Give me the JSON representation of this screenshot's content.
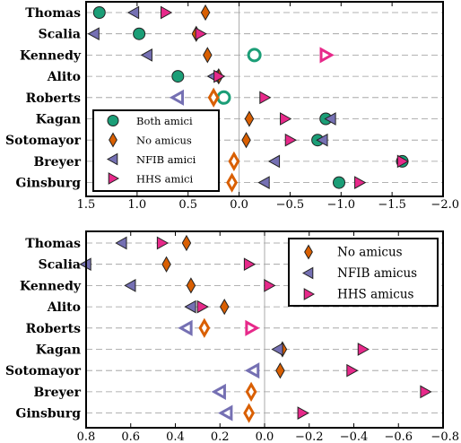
{
  "colors": {
    "both": "#1b9e77",
    "none": "#d95f02",
    "nfib": "#7570b3",
    "hhs": "#e7298a"
  },
  "chart_data": [
    {
      "type": "scatter",
      "title": "",
      "xlabel": "",
      "ylabel": "",
      "categories": [
        "Thomas",
        "Scalia",
        "Kennedy",
        "Alito",
        "Roberts",
        "Kagan",
        "Sotomayor",
        "Breyer",
        "Ginsburg"
      ],
      "xlim": [
        1.5,
        -2.0
      ],
      "xticks": [
        1.5,
        1.0,
        0.5,
        0.0,
        -0.5,
        -1.0,
        -1.5,
        -2.0
      ],
      "xtick_labels": [
        "1.5",
        "1.0",
        "0.5",
        "0.0",
        "−0.5",
        "−1.0",
        "−1.5",
        "−2.0"
      ],
      "grid": "horizontal dashed",
      "legend_position": "lower-left",
      "series": [
        {
          "name": "Both amici",
          "marker": "circle",
          "color_key": "both",
          "values": [
            1.37,
            0.98,
            -0.15,
            0.6,
            0.15,
            -0.85,
            -0.77,
            -1.6,
            -0.98
          ],
          "hollow": [
            false,
            false,
            true,
            false,
            true,
            false,
            false,
            false,
            false
          ]
        },
        {
          "name": "No amicus",
          "marker": "diamond",
          "color_key": "none",
          "values": [
            0.33,
            0.42,
            0.31,
            0.2,
            0.25,
            -0.1,
            -0.07,
            0.05,
            0.07
          ],
          "hollow": [
            false,
            false,
            false,
            false,
            true,
            false,
            false,
            true,
            true
          ]
        },
        {
          "name": "NFIB amici",
          "marker": "triangle-left",
          "color_key": "nfib",
          "values": [
            1.03,
            1.42,
            0.9,
            0.25,
            0.6,
            -0.9,
            -0.82,
            -0.35,
            -0.25
          ],
          "hollow": [
            false,
            false,
            false,
            false,
            true,
            false,
            false,
            false,
            false
          ]
        },
        {
          "name": "HHS amici",
          "marker": "triangle-right",
          "color_key": "hhs",
          "values": [
            0.72,
            0.38,
            -0.85,
            0.2,
            -0.25,
            -0.45,
            -0.5,
            -1.6,
            -1.18
          ],
          "hollow": [
            false,
            false,
            true,
            false,
            false,
            false,
            false,
            false,
            false
          ]
        }
      ]
    },
    {
      "type": "scatter",
      "title": "",
      "xlabel": "",
      "ylabel": "",
      "categories": [
        "Thomas",
        "Scalia",
        "Kennedy",
        "Alito",
        "Roberts",
        "Kagan",
        "Sotomayor",
        "Breyer",
        "Ginsburg"
      ],
      "xlim": [
        0.8,
        -0.8
      ],
      "xticks": [
        0.8,
        0.6,
        0.4,
        0.2,
        0.0,
        -0.2,
        -0.4,
        -0.6,
        -0.8
      ],
      "xtick_labels": [
        "0.8",
        "0.6",
        "0.4",
        "0.2",
        "0.0",
        "−0.2",
        "−0.4",
        "−0.6",
        "−0.8"
      ],
      "grid": "horizontal dashed",
      "legend_position": "top-right",
      "series": [
        {
          "name": "No amicus",
          "marker": "diamond",
          "color_key": "none",
          "values": [
            0.35,
            0.44,
            0.33,
            0.18,
            0.27,
            -0.08,
            -0.07,
            0.06,
            0.07
          ],
          "hollow": [
            false,
            false,
            false,
            false,
            true,
            false,
            false,
            true,
            true
          ]
        },
        {
          "name": "NFIB amicus",
          "marker": "triangle-left",
          "color_key": "nfib",
          "values": [
            0.64,
            0.8,
            0.6,
            0.33,
            0.35,
            -0.06,
            0.05,
            0.2,
            0.17
          ],
          "hollow": [
            false,
            false,
            false,
            false,
            true,
            false,
            true,
            true,
            true
          ]
        },
        {
          "name": "HHS amicus",
          "marker": "triangle-right",
          "color_key": "hhs",
          "values": [
            0.46,
            0.07,
            -0.02,
            0.28,
            0.06,
            -0.44,
            -0.39,
            -0.72,
            -0.17
          ],
          "hollow": [
            false,
            false,
            false,
            false,
            true,
            false,
            false,
            false,
            false
          ]
        }
      ]
    }
  ]
}
